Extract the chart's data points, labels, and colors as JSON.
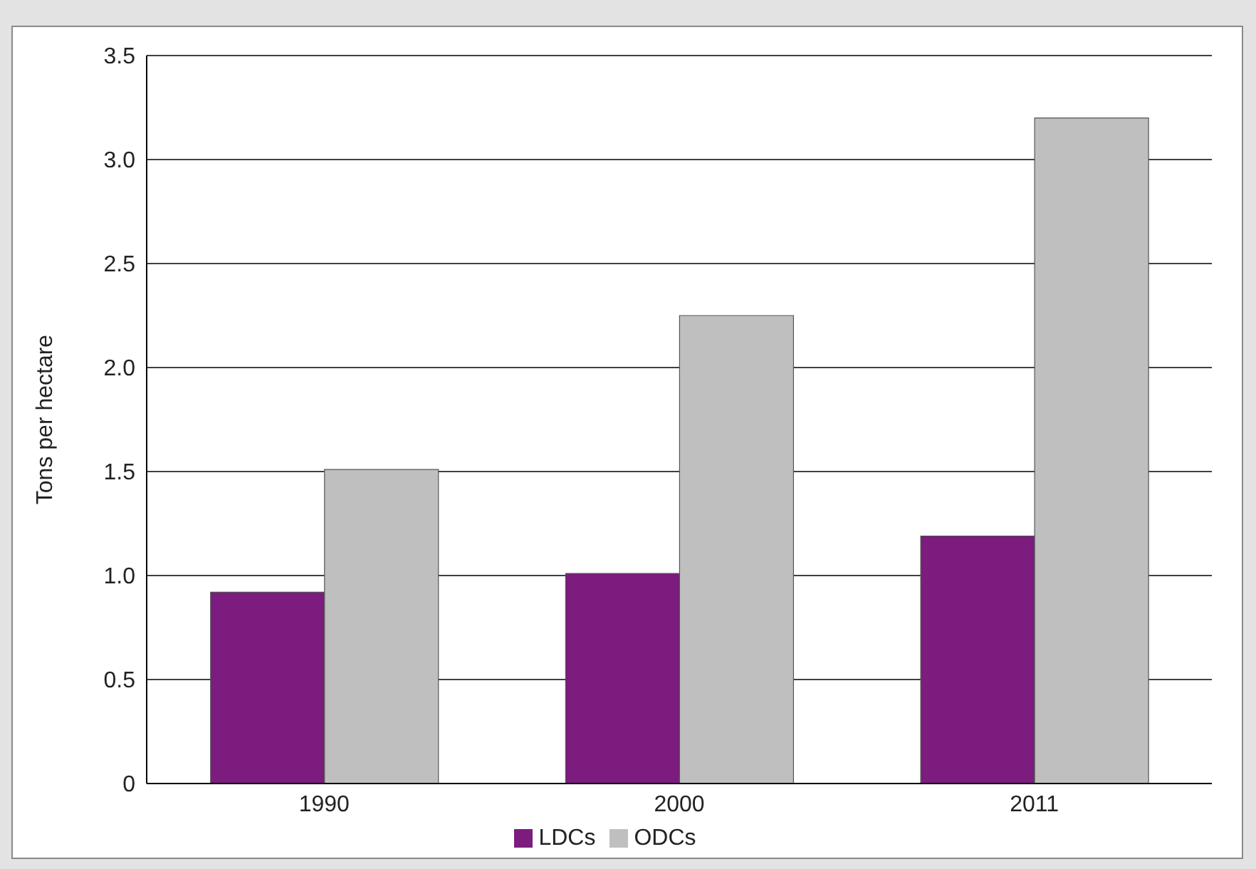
{
  "chart_data": {
    "type": "bar",
    "ylabel": "Tons per hectare",
    "categories": [
      "1990",
      "2000",
      "2011"
    ],
    "series": [
      {
        "name": "LDCs",
        "color": "#7b1c7e",
        "values": [
          0.92,
          1.01,
          1.19
        ]
      },
      {
        "name": "ODCs",
        "color": "#bfbfbf",
        "values": [
          1.51,
          2.25,
          3.2
        ]
      }
    ],
    "ylim": [
      0,
      3.5
    ],
    "yticks": [
      0,
      0.5,
      {
        "value": 1,
        "label": "1.0"
      },
      1.5,
      {
        "value": 2,
        "label": "2.0"
      },
      2.5,
      {
        "value": 3,
        "label": "3.0"
      },
      3.5
    ],
    "grid": "y",
    "legend": "bottom"
  }
}
